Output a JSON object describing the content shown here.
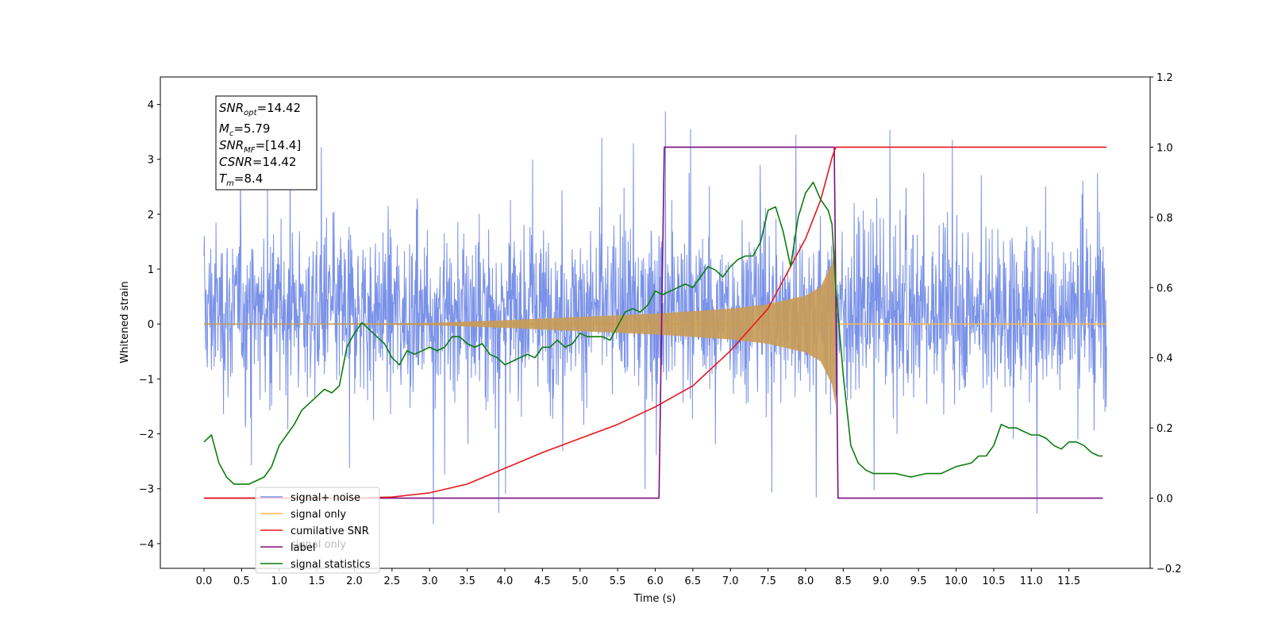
{
  "chart_data": {
    "type": "line",
    "xlabel": "Time (s)",
    "ylabel": "Whitened strain",
    "y2label": "",
    "xlim": [
      -0.58,
      12.58
    ],
    "ylim": [
      -4.45,
      4.5
    ],
    "y2lim": [
      -0.2,
      1.2
    ],
    "x_ticks": [
      0.0,
      0.5,
      1.0,
      1.5,
      2.0,
      2.5,
      3.0,
      3.5,
      4.0,
      4.5,
      5.0,
      5.5,
      6.0,
      6.5,
      7.0,
      7.5,
      8.0,
      8.5,
      9.0,
      9.5,
      10.0,
      10.5,
      11.0,
      11.5
    ],
    "x_tick_labels": [
      "0.0",
      "0.5",
      "1.0",
      "1.5",
      "2.0",
      "2.5",
      "3.0",
      "3.5",
      "4.0",
      "4.5",
      "5.0",
      "5.5",
      "6.0",
      "6.5",
      "7.0",
      "7.5",
      "8.0",
      "8.5",
      "9.0",
      "9.5",
      "10.0",
      "10.5",
      "11.0",
      "11.5"
    ],
    "y_ticks": [
      -4,
      -3,
      -2,
      -1,
      0,
      1,
      2,
      3,
      4
    ],
    "y_tick_labels": [
      "−4",
      "−3",
      "−2",
      "−1",
      "0",
      "1",
      "2",
      "3",
      "4"
    ],
    "y2_ticks": [
      -0.2,
      0.0,
      0.2,
      0.4,
      0.6,
      0.8,
      1.0,
      1.2
    ],
    "y2_tick_labels": [
      "−0.2",
      "0.0",
      "0.2",
      "0.4",
      "0.6",
      "0.8",
      "1.0",
      "1.2"
    ],
    "grid": false,
    "legend_location": "lower-left",
    "series": [
      {
        "name": "signal+ noise",
        "axis": "left",
        "color": "#6a85e6",
        "kind": "noisy-strain",
        "x_range": [
          0.0,
          12.0
        ],
        "noise_band": [
          -2.0,
          2.5
        ],
        "noise_outliers": [
          -4.0,
          4.1
        ]
      },
      {
        "name": "signal only",
        "axis": "left",
        "color": "#ffb347",
        "kind": "chirp",
        "x_range": [
          0.0,
          12.0
        ],
        "envelope": {
          "x": [
            0.0,
            3.0,
            4.0,
            5.0,
            6.0,
            7.0,
            7.5,
            8.0,
            8.2,
            8.35,
            8.4
          ],
          "y": [
            0.0,
            0.02,
            0.07,
            0.13,
            0.19,
            0.28,
            0.36,
            0.52,
            0.68,
            1.1,
            1.5
          ]
        }
      },
      {
        "name": "cumilative SNR",
        "axis": "right",
        "color": "#e8161b",
        "x": [
          0.0,
          2.0,
          2.5,
          3.0,
          3.5,
          4.0,
          4.5,
          5.0,
          5.5,
          6.0,
          6.5,
          7.0,
          7.5,
          8.0,
          8.2,
          8.35,
          8.4,
          12.0
        ],
        "y": [
          0.0,
          0.0,
          0.003,
          0.015,
          0.04,
          0.085,
          0.13,
          0.17,
          0.21,
          0.26,
          0.32,
          0.42,
          0.54,
          0.74,
          0.85,
          0.97,
          1.0,
          1.0
        ]
      },
      {
        "name": "label",
        "axis": "right",
        "color": "#7b0d7d",
        "x": [
          0.0,
          6.05,
          6.12,
          8.38,
          8.43,
          11.95
        ],
        "y": [
          0.0,
          0.0,
          1.0,
          1.0,
          0.0,
          0.0
        ]
      },
      {
        "name": "signal statistics",
        "axis": "right",
        "color": "#0c7d0c",
        "x": [
          0.0,
          0.1,
          0.2,
          0.3,
          0.4,
          0.5,
          0.6,
          0.7,
          0.8,
          0.9,
          1.0,
          1.1,
          1.2,
          1.3,
          1.4,
          1.5,
          1.6,
          1.7,
          1.8,
          1.9,
          2.0,
          2.1,
          2.2,
          2.3,
          2.4,
          2.5,
          2.6,
          2.7,
          2.8,
          2.9,
          3.0,
          3.1,
          3.2,
          3.3,
          3.4,
          3.5,
          3.6,
          3.7,
          3.8,
          3.9,
          4.0,
          4.1,
          4.2,
          4.3,
          4.4,
          4.5,
          4.6,
          4.7,
          4.8,
          4.9,
          5.0,
          5.1,
          5.2,
          5.3,
          5.4,
          5.5,
          5.6,
          5.7,
          5.8,
          5.9,
          6.0,
          6.1,
          6.2,
          6.3,
          6.4,
          6.5,
          6.6,
          6.7,
          6.8,
          6.9,
          7.0,
          7.1,
          7.2,
          7.3,
          7.4,
          7.5,
          7.6,
          7.7,
          7.8,
          7.9,
          8.0,
          8.1,
          8.2,
          8.3,
          8.35,
          8.4,
          8.5,
          8.6,
          8.7,
          8.8,
          8.9,
          9.0,
          9.2,
          9.4,
          9.6,
          9.8,
          10.0,
          10.2,
          10.3,
          10.4,
          10.5,
          10.6,
          10.7,
          10.8,
          10.9,
          11.0,
          11.1,
          11.2,
          11.3,
          11.4,
          11.5,
          11.6,
          11.7,
          11.8,
          11.9,
          11.95
        ],
        "y": [
          0.16,
          0.18,
          0.1,
          0.06,
          0.04,
          0.04,
          0.04,
          0.05,
          0.06,
          0.09,
          0.15,
          0.18,
          0.21,
          0.25,
          0.27,
          0.29,
          0.31,
          0.3,
          0.32,
          0.43,
          0.47,
          0.5,
          0.48,
          0.46,
          0.44,
          0.4,
          0.38,
          0.42,
          0.41,
          0.42,
          0.43,
          0.42,
          0.43,
          0.46,
          0.46,
          0.44,
          0.43,
          0.44,
          0.41,
          0.4,
          0.38,
          0.39,
          0.4,
          0.41,
          0.4,
          0.43,
          0.43,
          0.45,
          0.43,
          0.44,
          0.47,
          0.46,
          0.46,
          0.46,
          0.45,
          0.49,
          0.53,
          0.54,
          0.53,
          0.55,
          0.59,
          0.58,
          0.59,
          0.6,
          0.61,
          0.6,
          0.63,
          0.66,
          0.65,
          0.63,
          0.66,
          0.68,
          0.69,
          0.69,
          0.73,
          0.82,
          0.83,
          0.76,
          0.66,
          0.8,
          0.87,
          0.9,
          0.85,
          0.82,
          0.78,
          0.6,
          0.35,
          0.15,
          0.1,
          0.08,
          0.07,
          0.07,
          0.07,
          0.06,
          0.07,
          0.07,
          0.09,
          0.1,
          0.12,
          0.12,
          0.15,
          0.21,
          0.2,
          0.2,
          0.19,
          0.18,
          0.18,
          0.17,
          0.15,
          0.14,
          0.16,
          0.16,
          0.15,
          0.13,
          0.12,
          0.12
        ]
      }
    ],
    "legend_entries": [
      "signal+ noise",
      "signal only",
      "cumilative SNR",
      "label",
      "signal statistics"
    ],
    "legend_ghost_text": "signal only"
  },
  "info_box": {
    "snr_opt": {
      "label": "SNR",
      "sub": "opt",
      "value": "=14.42"
    },
    "mc": {
      "label": "M",
      "sub": "c",
      "value": "=5.79"
    },
    "snr_mf": {
      "label": "SNR",
      "sub": "MF",
      "value": "=[14.4]"
    },
    "csnr": {
      "label": "CSNR",
      "value": "=14.42"
    },
    "tm": {
      "label": "T",
      "sub": "m",
      "value": "=8.4"
    }
  }
}
